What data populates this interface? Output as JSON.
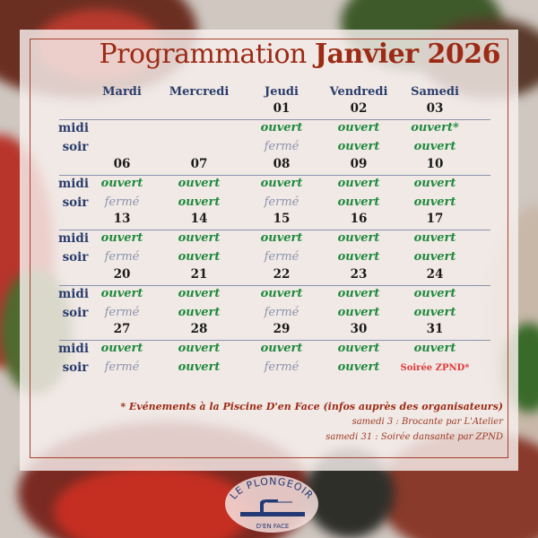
{
  "title": {
    "prefix": "Programmation",
    "month_year": "Janvier 2026"
  },
  "days": [
    "Mardi",
    "Mercredi",
    "Jeudi",
    "Vendredi",
    "Samedi"
  ],
  "row_labels": {
    "midi": "midi",
    "soir": "soir"
  },
  "weeks": [
    {
      "dates": [
        "",
        "",
        "01",
        "02",
        "03"
      ],
      "midi": [
        "",
        "",
        "ouvert",
        "ouvert",
        "ouvert*"
      ],
      "soir": [
        "",
        "",
        "fermé",
        "ouvert",
        "ouvert"
      ]
    },
    {
      "dates": [
        "06",
        "07",
        "08",
        "09",
        "10"
      ],
      "midi": [
        "ouvert",
        "ouvert",
        "ouvert",
        "ouvert",
        "ouvert"
      ],
      "soir": [
        "fermé",
        "ouvert",
        "fermé",
        "ouvert",
        "ouvert"
      ]
    },
    {
      "dates": [
        "13",
        "14",
        "15",
        "16",
        "17"
      ],
      "midi": [
        "ouvert",
        "ouvert",
        "ouvert",
        "ouvert",
        "ouvert"
      ],
      "soir": [
        "fermé",
        "ouvert",
        "fermé",
        "ouvert",
        "ouvert"
      ]
    },
    {
      "dates": [
        "20",
        "21",
        "22",
        "23",
        "24"
      ],
      "midi": [
        "ouvert",
        "ouvert",
        "ouvert",
        "ouvert",
        "ouvert"
      ],
      "soir": [
        "fermé",
        "ouvert",
        "fermé",
        "ouvert",
        "ouvert"
      ]
    },
    {
      "dates": [
        "27",
        "28",
        "29",
        "30",
        "31"
      ],
      "midi": [
        "ouvert",
        "ouvert",
        "ouvert",
        "ouvert",
        "ouvert"
      ],
      "soir": [
        "fermé",
        "ouvert",
        "fermé",
        "ouvert",
        "Soirée ZPND*"
      ]
    }
  ],
  "notes": {
    "main": "* Evénements à la Piscine D'en Face (infos auprès des organisateurs)",
    "lines": [
      "samedi 3 : Brocante par L'Atelier",
      "samedi 31 : Soirée dansante par ZPND"
    ]
  },
  "logo": {
    "top": "LE PLONGEOIR",
    "band": "BISTRO · RESTO · DETENTE",
    "bottom": "D'EN FACE"
  },
  "colors": {
    "title": "#9c2a14",
    "day_header": "#2a3d6b",
    "open": "#1e8a3c",
    "closed": "#8b93ab",
    "event": "#e03a3a",
    "frame": "#a8402e"
  }
}
